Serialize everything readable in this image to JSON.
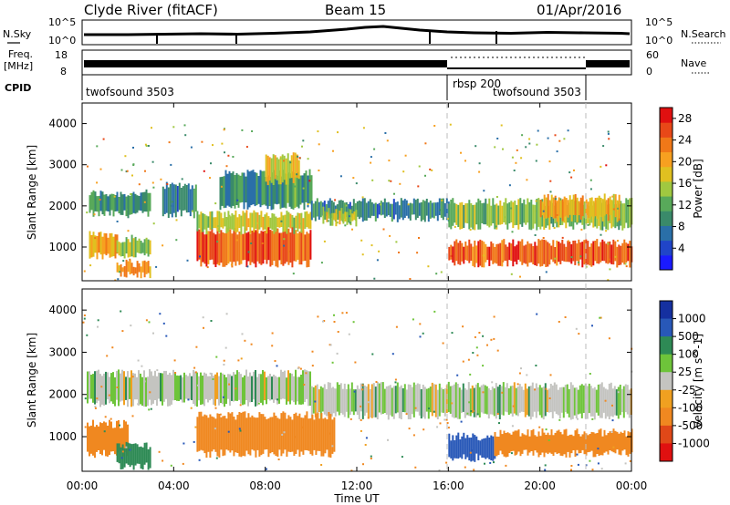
{
  "header": {
    "title_left": "Clyde River (fitACF)",
    "title_mid": "Beam 15",
    "title_right": "01/Apr/2016"
  },
  "noise_panel": {
    "left_label": "N.Sky",
    "right_label": "N.Search",
    "ticks_left": [
      "10^5",
      "10^0"
    ],
    "ticks_right": [
      "10^5",
      "10^0"
    ]
  },
  "freq_panel": {
    "left_label_1": "Freq.",
    "left_label_2": "[MHz]",
    "right_label": "Nave",
    "ticks_left": [
      "18",
      "8"
    ],
    "ticks_right": [
      "60",
      "0"
    ]
  },
  "cpid_panel": {
    "label": "CPID",
    "segments": [
      "twofsound 3503",
      "rbsp 200",
      "twofsound 3503"
    ]
  },
  "x_axis": {
    "ticks": [
      "00:00",
      "04:00",
      "08:00",
      "12:00",
      "16:00",
      "20:00",
      "00:00"
    ],
    "label": "Time UT"
  },
  "chart_data": [
    {
      "type": "heatmap",
      "quantity": "Power",
      "xlabel": "Time UT",
      "ylabel": "Slant Range [km]",
      "xlim": [
        "00:00",
        "24:00"
      ],
      "ylim": [
        180,
        4500
      ],
      "y_ticks": [
        "1000",
        "2000",
        "3000",
        "4000"
      ],
      "colorbar": {
        "label": "Power [dB]",
        "ticks": [
          "4",
          "8",
          "12",
          "16",
          "20",
          "24",
          "28"
        ],
        "range": [
          0,
          30
        ]
      },
      "bands": [
        {
          "t0": 0.3,
          "t1": 3.0,
          "r0": 1800,
          "r1": 2300,
          "value": 10
        },
        {
          "t0": 0.3,
          "t1": 1.5,
          "r0": 800,
          "r1": 1300,
          "value": 20
        },
        {
          "t0": 1.5,
          "t1": 3.0,
          "r0": 800,
          "r1": 1200,
          "value": 14
        },
        {
          "t0": 1.5,
          "t1": 3.0,
          "r0": 300,
          "r1": 600,
          "value": 22
        },
        {
          "t0": 3.5,
          "t1": 5.0,
          "r0": 1800,
          "r1": 2500,
          "value": 8
        },
        {
          "t0": 5.0,
          "t1": 10.0,
          "r0": 600,
          "r1": 1400,
          "value": 26
        },
        {
          "t0": 5.0,
          "t1": 10.0,
          "r0": 1400,
          "r1": 1800,
          "value": 16
        },
        {
          "t0": 6.0,
          "t1": 10.0,
          "r0": 2000,
          "r1": 2800,
          "value": 10
        },
        {
          "t0": 8.0,
          "t1": 9.5,
          "r0": 2600,
          "r1": 3200,
          "value": 18
        },
        {
          "t0": 10.0,
          "t1": 16.0,
          "r0": 1700,
          "r1": 2100,
          "value": 8
        },
        {
          "t0": 10.5,
          "t1": 12.0,
          "r0": 1600,
          "r1": 1900,
          "value": 16
        },
        {
          "t0": 16.0,
          "t1": 24.0,
          "r0": 600,
          "r1": 1100,
          "value": 26
        },
        {
          "t0": 16.0,
          "t1": 24.0,
          "r0": 1500,
          "r1": 2100,
          "value": 14
        },
        {
          "t0": 20.0,
          "t1": 23.5,
          "r0": 1700,
          "r1": 2200,
          "value": 20
        }
      ]
    },
    {
      "type": "heatmap",
      "quantity": "Velocity",
      "xlabel": "Time UT",
      "ylabel": "Slant Range [km]",
      "xlim": [
        "00:00",
        "24:00"
      ],
      "ylim": [
        180,
        4500
      ],
      "y_ticks": [
        "1000",
        "2000",
        "3000",
        "4000"
      ],
      "colorbar": {
        "label": "Velocity [m s^-1]",
        "ticks": [
          "1000",
          "500",
          "100",
          "25",
          "-25",
          "-100",
          "-500",
          "-1000"
        ]
      },
      "bands": [
        {
          "t0": 0.2,
          "t1": 10.0,
          "r0": 1800,
          "r1": 2500,
          "value": 0
        },
        {
          "t0": 10.0,
          "t1": 24.0,
          "r0": 1500,
          "r1": 2200,
          "value": 0
        },
        {
          "t0": 0.2,
          "t1": 2.0,
          "r0": 600,
          "r1": 1300,
          "value": -250
        },
        {
          "t0": 1.5,
          "t1": 3.0,
          "r0": 300,
          "r1": 800,
          "value": 60
        },
        {
          "t0": 5.0,
          "t1": 11.0,
          "r0": 600,
          "r1": 1500,
          "value": -250
        },
        {
          "t0": 16.0,
          "t1": 18.0,
          "r0": 500,
          "r1": 1000,
          "value": 300
        },
        {
          "t0": 18.0,
          "t1": 24.0,
          "r0": 600,
          "r1": 1100,
          "value": -250
        }
      ]
    }
  ]
}
